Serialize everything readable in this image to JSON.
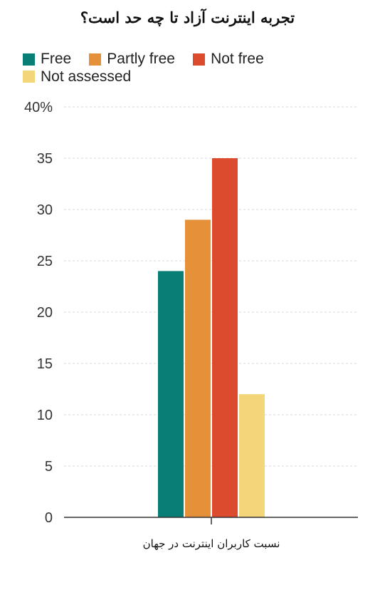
{
  "chart_data": {
    "type": "bar",
    "title": "تجربه اینترنت آزاد تا چه حد است؟",
    "categories": [
      "نسبت کاربران اینترنت در جهان"
    ],
    "series": [
      {
        "name": "Free",
        "values": [
          24
        ],
        "color": "#087f76"
      },
      {
        "name": "Partly free",
        "values": [
          29
        ],
        "color": "#e59139"
      },
      {
        "name": "Not free",
        "values": [
          35
        ],
        "color": "#dc4b2d"
      },
      {
        "name": "Not assessed",
        "values": [
          12
        ],
        "color": "#f3d57a"
      }
    ],
    "yticks": [
      "0",
      "5",
      "10",
      "15",
      "20",
      "25",
      "30",
      "35",
      "40%"
    ],
    "ylim": [
      0,
      40
    ],
    "grid": true,
    "legend": "top-left"
  }
}
